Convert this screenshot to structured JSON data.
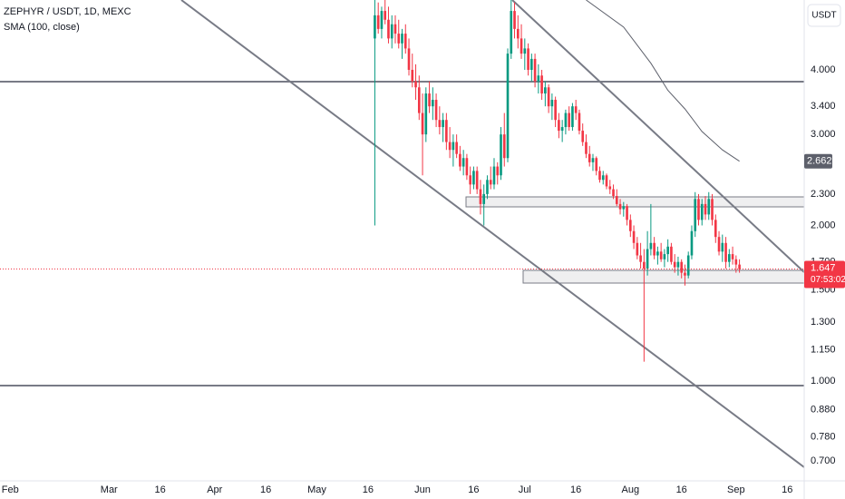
{
  "chart_data": {
    "type": "candlestick",
    "title": "ZEPHYR / USDT, 1D, MEXC",
    "currency": "USDT",
    "countdown": "07:53:02",
    "log_scale": true,
    "grid": false,
    "up_color": "#089981",
    "down_color": "#f23645",
    "ylim": [
      0.641,
      5.46
    ],
    "yticks": [
      {
        "value": 4,
        "label": "4.000"
      },
      {
        "value": 3.4,
        "label": "3.400"
      },
      {
        "value": 3,
        "label": "3.000"
      },
      {
        "value": 2.3,
        "label": "2.300"
      },
      {
        "value": 2,
        "label": "2.000"
      },
      {
        "value": 1.7,
        "label": "1.700"
      },
      {
        "value": 1.5,
        "label": "1.500"
      },
      {
        "value": 1.3,
        "label": "1.300"
      },
      {
        "value": 1.15,
        "label": "1.150"
      },
      {
        "value": 1,
        "label": "1.000"
      },
      {
        "value": 0.88,
        "label": "0.880"
      },
      {
        "value": 0.78,
        "label": "0.780"
      },
      {
        "value": 0.7,
        "label": "0.700"
      }
    ],
    "xlim": [
      "01-29",
      "09-21"
    ],
    "xticks": [
      {
        "value": "02-01",
        "label": "Feb"
      },
      {
        "value": "03-01",
        "label": "Mar"
      },
      {
        "value": "03-16",
        "label": "16"
      },
      {
        "value": "04-01",
        "label": "Apr"
      },
      {
        "value": "04-16",
        "label": "16"
      },
      {
        "value": "05-01",
        "label": "May"
      },
      {
        "value": "05-16",
        "label": "16"
      },
      {
        "value": "06-01",
        "label": "Jun"
      },
      {
        "value": "06-16",
        "label": "16"
      },
      {
        "value": "07-01",
        "label": "Jul"
      },
      {
        "value": "07-16",
        "label": "16"
      },
      {
        "value": "08-01",
        "label": "Aug"
      },
      {
        "value": "08-16",
        "label": "16"
      },
      {
        "value": "09-01",
        "label": "Sep"
      },
      {
        "value": "09-16",
        "label": "16"
      }
    ],
    "x": [
      "05-18",
      "05-19",
      "05-20",
      "05-21",
      "05-22",
      "05-23",
      "05-24",
      "05-25",
      "05-26",
      "05-27",
      "05-28",
      "05-29",
      "05-30",
      "05-31",
      "06-01",
      "06-02",
      "06-03",
      "06-04",
      "06-05",
      "06-06",
      "06-07",
      "06-08",
      "06-09",
      "06-10",
      "06-11",
      "06-12",
      "06-13",
      "06-14",
      "06-15",
      "06-16",
      "06-17",
      "06-18",
      "06-19",
      "06-20",
      "06-21",
      "06-22",
      "06-23",
      "06-24",
      "06-25",
      "06-26",
      "06-27",
      "06-28",
      "06-29",
      "06-30",
      "07-01",
      "07-02",
      "07-03",
      "07-04",
      "07-05",
      "07-06",
      "07-07",
      "07-08",
      "07-09",
      "07-10",
      "07-11",
      "07-12",
      "07-13",
      "07-14",
      "07-15",
      "07-16",
      "07-17",
      "07-18",
      "07-19",
      "07-20",
      "07-21",
      "07-22",
      "07-23",
      "07-24",
      "07-25",
      "07-26",
      "07-27",
      "07-28",
      "07-29",
      "07-30",
      "07-31",
      "08-01",
      "08-02",
      "08-03",
      "08-04",
      "08-05",
      "08-06",
      "08-07",
      "08-08",
      "08-09",
      "08-10",
      "08-11",
      "08-12",
      "08-13",
      "08-14",
      "08-15",
      "08-16",
      "08-17",
      "08-18",
      "08-19",
      "08-20",
      "08-21",
      "08-22",
      "08-23",
      "08-24",
      "08-25",
      "08-26",
      "08-27",
      "08-28",
      "08-29",
      "08-30",
      "08-31",
      "09-01",
      "09-02"
    ],
    "open": [
      4.6,
      5.1,
      4.8,
      5.2,
      5.0,
      4.6,
      4.9,
      4.7,
      4.5,
      4.7,
      4.4,
      4.0,
      3.8,
      3.7,
      3.3,
      3.0,
      3.6,
      3.4,
      3.5,
      3.2,
      3.1,
      3.2,
      2.9,
      2.8,
      2.9,
      2.75,
      2.6,
      2.7,
      2.5,
      2.4,
      2.55,
      2.35,
      2.2,
      2.3,
      2.45,
      2.4,
      2.6,
      2.5,
      3.0,
      2.7,
      4.3,
      5.2,
      4.8,
      4.6,
      4.3,
      4.4,
      4.0,
      4.2,
      3.8,
      3.9,
      3.6,
      3.7,
      3.4,
      3.5,
      3.2,
      3.05,
      3.1,
      3.3,
      3.1,
      3.4,
      3.3,
      3.05,
      2.9,
      2.75,
      2.65,
      2.7,
      2.55,
      2.45,
      2.5,
      2.38,
      2.35,
      2.28,
      2.2,
      2.15,
      2.18,
      2.05,
      1.95,
      1.85,
      1.75,
      1.7,
      1.65,
      1.8,
      1.85,
      1.75,
      1.78,
      1.72,
      1.76,
      1.82,
      1.7,
      1.66,
      1.7,
      1.62,
      1.6,
      1.75,
      1.95,
      2.25,
      2.05,
      2.2,
      2.1,
      2.25,
      2.05,
      1.9,
      1.78,
      1.85,
      1.7,
      1.76,
      1.72,
      1.68
    ],
    "high": [
      5.46,
      5.4,
      5.3,
      5.46,
      5.3,
      5.1,
      5.1,
      5.0,
      4.8,
      4.9,
      4.6,
      4.3,
      4.1,
      3.9,
      3.6,
      3.7,
      3.8,
      3.7,
      3.6,
      3.4,
      3.3,
      3.3,
      3.1,
      3.0,
      3.0,
      2.85,
      2.8,
      2.75,
      2.6,
      2.6,
      2.6,
      2.45,
      2.4,
      2.5,
      2.6,
      2.7,
      2.65,
      3.1,
      3.3,
      4.4,
      5.46,
      5.4,
      5.1,
      4.9,
      4.6,
      4.5,
      4.3,
      4.3,
      4.1,
      4.0,
      3.8,
      3.75,
      3.6,
      3.55,
      3.3,
      3.2,
      3.35,
      3.4,
      3.45,
      3.5,
      3.35,
      3.15,
      3.0,
      2.85,
      2.75,
      2.72,
      2.6,
      2.55,
      2.52,
      2.45,
      2.4,
      2.35,
      2.25,
      2.22,
      2.2,
      2.1,
      2.0,
      1.9,
      1.85,
      1.8,
      1.95,
      2.2,
      1.9,
      1.82,
      1.85,
      1.8,
      1.88,
      1.85,
      1.76,
      1.74,
      1.72,
      1.68,
      1.78,
      2.0,
      2.32,
      2.3,
      2.25,
      2.28,
      2.32,
      2.3,
      2.1,
      1.95,
      1.92,
      1.9,
      1.8,
      1.82,
      1.75,
      1.72
    ],
    "low": [
      2.0,
      4.7,
      4.6,
      4.9,
      4.5,
      4.4,
      4.5,
      4.4,
      4.2,
      4.3,
      3.9,
      3.7,
      3.5,
      3.2,
      2.5,
      2.9,
      3.3,
      3.2,
      3.1,
      3.0,
      2.9,
      2.8,
      2.7,
      2.6,
      2.7,
      2.55,
      2.5,
      2.45,
      2.3,
      2.35,
      2.3,
      2.1,
      2.0,
      2.25,
      2.35,
      2.35,
      2.4,
      2.45,
      2.6,
      2.65,
      4.2,
      4.6,
      4.4,
      4.2,
      4.0,
      3.9,
      3.8,
      3.7,
      3.6,
      3.5,
      3.4,
      3.3,
      3.2,
      3.1,
      2.95,
      2.9,
      3.0,
      3.05,
      3.05,
      3.2,
      3.0,
      2.85,
      2.7,
      2.6,
      2.55,
      2.5,
      2.42,
      2.4,
      2.35,
      2.3,
      2.25,
      2.18,
      2.1,
      2.08,
      2.0,
      1.9,
      1.8,
      1.72,
      1.65,
      1.09,
      1.6,
      1.75,
      1.72,
      1.68,
      1.7,
      1.66,
      1.7,
      1.68,
      1.62,
      1.6,
      1.58,
      1.53,
      1.58,
      1.72,
      1.9,
      2.0,
      2.0,
      2.05,
      2.05,
      2.0,
      1.85,
      1.75,
      1.7,
      1.65,
      1.66,
      1.68,
      1.62,
      1.62
    ],
    "close": [
      5.1,
      4.8,
      5.2,
      5.0,
      4.6,
      4.9,
      4.7,
      4.5,
      4.7,
      4.4,
      4.0,
      3.8,
      3.7,
      3.3,
      3.0,
      3.6,
      3.4,
      3.5,
      3.2,
      3.1,
      3.2,
      2.9,
      2.8,
      2.9,
      2.75,
      2.6,
      2.7,
      2.5,
      2.4,
      2.55,
      2.35,
      2.2,
      2.3,
      2.45,
      2.4,
      2.6,
      2.5,
      3.0,
      2.7,
      4.3,
      5.2,
      4.8,
      4.6,
      4.3,
      4.4,
      4.0,
      4.2,
      3.8,
      3.9,
      3.6,
      3.7,
      3.4,
      3.5,
      3.2,
      3.05,
      3.1,
      3.3,
      3.1,
      3.4,
      3.3,
      3.05,
      2.9,
      2.75,
      2.65,
      2.7,
      2.55,
      2.45,
      2.5,
      2.38,
      2.35,
      2.28,
      2.2,
      2.15,
      2.18,
      2.05,
      1.95,
      1.85,
      1.75,
      1.7,
      1.65,
      1.8,
      1.85,
      1.75,
      1.78,
      1.72,
      1.76,
      1.82,
      1.7,
      1.66,
      1.7,
      1.62,
      1.6,
      1.75,
      1.95,
      2.25,
      2.05,
      2.2,
      2.1,
      2.25,
      2.05,
      1.9,
      1.78,
      1.85,
      1.7,
      1.76,
      1.72,
      1.68,
      1.647
    ],
    "overlays": [
      {
        "name": "SMA (100, close)",
        "color": "#5d606b",
        "label_color": "#5d606b",
        "x": [
          "07-19",
          "07-30",
          "08-07",
          "08-12",
          "08-17",
          "08-22",
          "08-28",
          "09-02"
        ],
        "values": [
          5.46,
          4.84,
          4.12,
          3.65,
          3.36,
          3.04,
          2.8,
          2.662
        ]
      }
    ]
  }
}
